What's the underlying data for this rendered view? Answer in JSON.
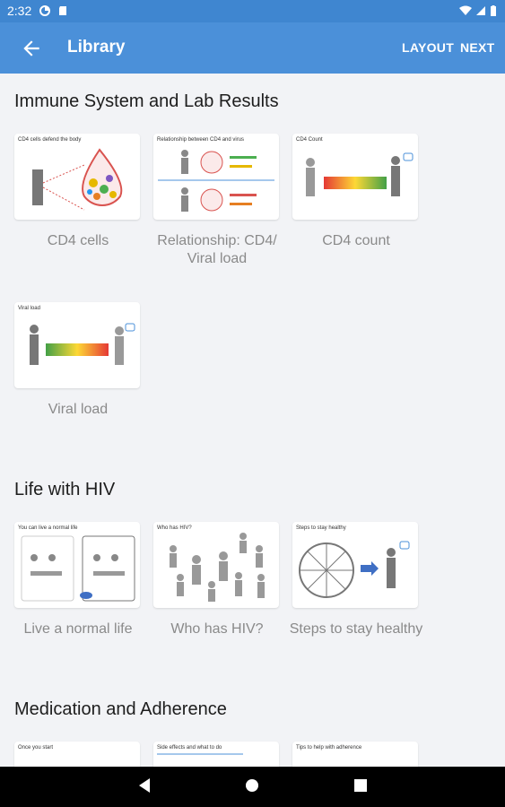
{
  "status_bar": {
    "time": "2:32"
  },
  "app_bar": {
    "title": "Library",
    "layout_label": "LAYOUT",
    "next_label": "NEXT"
  },
  "sections": [
    {
      "title": "Immune System and Lab Results",
      "cards": [
        {
          "label": "CD4 cells",
          "thumb_heading": "CD4 cells defend the body"
        },
        {
          "label": "Relationship: CD4/ Viral load",
          "thumb_heading": "Relationship between CD4 and virus"
        },
        {
          "label": "CD4 count",
          "thumb_heading": "CD4 Count"
        },
        {
          "label": "Viral load",
          "thumb_heading": "Viral load"
        }
      ]
    },
    {
      "title": "Life with HIV",
      "cards": [
        {
          "label": "Live a normal life",
          "thumb_heading": "You can live a normal life"
        },
        {
          "label": "Who has HIV?",
          "thumb_heading": "Who has HIV?"
        },
        {
          "label": "Steps to stay healthy",
          "thumb_heading": "Steps to stay healthy"
        }
      ]
    },
    {
      "title": "Medication and Adherence",
      "cards": [
        {
          "label": "",
          "thumb_heading": "Once you start"
        },
        {
          "label": "",
          "thumb_heading": "Side effects and what to do"
        },
        {
          "label": "",
          "thumb_heading": "Tips to help with adherence"
        }
      ]
    }
  ],
  "colors": {
    "app_bar": "#4b90d9",
    "status_bar": "#3f86d0",
    "background": "#f2f3f6"
  },
  "icons": {
    "back": "arrow-left-icon",
    "nav": [
      "nav-back-icon",
      "nav-home-icon",
      "nav-recents-icon"
    ]
  }
}
